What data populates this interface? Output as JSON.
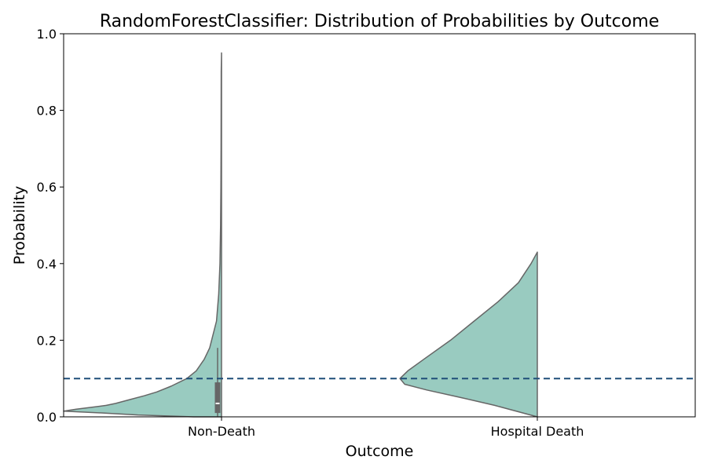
{
  "chart_data": {
    "type": "violin",
    "title": "RandomForestClassifier: Distribution of Probabilities by Outcome",
    "xlabel": "Outcome",
    "ylabel": "Probability",
    "categories": [
      "Non-Death",
      "Hospital Death"
    ],
    "ylim": [
      0.0,
      1.0
    ],
    "yticks": [
      "0.0",
      "0.2",
      "0.4",
      "0.6",
      "0.8",
      "1.0"
    ],
    "grid": false,
    "legend": "none",
    "threshold": 0.1,
    "colors": {
      "violin_fill": "#99cbc0",
      "violin_edge": "#666666",
      "threshold_line": "#1f4e79",
      "box": "#666666",
      "median": "#ffffff"
    },
    "series": [
      {
        "category": "Non-Death",
        "side": "left",
        "min": 0.0,
        "max": 0.95,
        "box": {
          "whisker_low": 0.0,
          "q1": 0.01,
          "median": 0.035,
          "q3": 0.09,
          "whisker_high": 0.18
        },
        "profile": [
          [
            0.0,
            0.175
          ],
          [
            0.005,
            0.53
          ],
          [
            0.01,
            0.75
          ],
          [
            0.015,
            1.0
          ],
          [
            0.02,
            0.92
          ],
          [
            0.025,
            0.82
          ],
          [
            0.03,
            0.73
          ],
          [
            0.035,
            0.67
          ],
          [
            0.045,
            0.58
          ],
          [
            0.055,
            0.49
          ],
          [
            0.065,
            0.41
          ],
          [
            0.08,
            0.32
          ],
          [
            0.1,
            0.22
          ],
          [
            0.12,
            0.16
          ],
          [
            0.15,
            0.11
          ],
          [
            0.18,
            0.075
          ],
          [
            0.22,
            0.05
          ],
          [
            0.25,
            0.032
          ],
          [
            0.32,
            0.018
          ],
          [
            0.4,
            0.01
          ],
          [
            0.5,
            0.006
          ],
          [
            0.6,
            0.004
          ],
          [
            0.7,
            0.003
          ],
          [
            0.8,
            0.0025
          ],
          [
            0.9,
            0.002
          ],
          [
            0.95,
            0.0
          ]
        ]
      },
      {
        "category": "Hospital Death",
        "side": "left",
        "min": 0.0,
        "max": 0.43,
        "profile": [
          [
            0.0,
            0.0
          ],
          [
            0.03,
            0.27
          ],
          [
            0.05,
            0.48
          ],
          [
            0.07,
            0.7
          ],
          [
            0.085,
            0.84
          ],
          [
            0.1,
            0.87
          ],
          [
            0.12,
            0.82
          ],
          [
            0.15,
            0.72
          ],
          [
            0.2,
            0.55
          ],
          [
            0.25,
            0.4
          ],
          [
            0.3,
            0.25
          ],
          [
            0.35,
            0.12
          ],
          [
            0.4,
            0.04
          ],
          [
            0.43,
            0.0
          ]
        ]
      }
    ]
  }
}
